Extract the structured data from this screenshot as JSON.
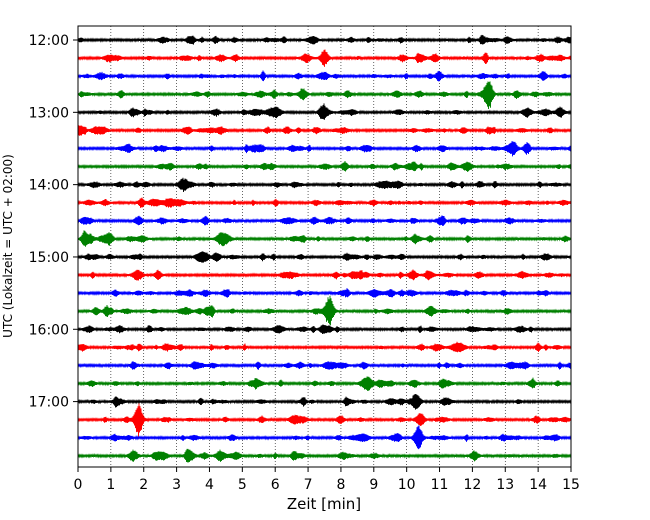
{
  "chart_data": {
    "type": "line",
    "title": "",
    "xlabel": "Zeit  [min]",
    "ylabel": "UTC (Lokalzeit = UTC + 02:00)",
    "xlim": [
      0,
      15
    ],
    "x_ticks": [
      "0",
      "1",
      "2",
      "3",
      "4",
      "5",
      "6",
      "7",
      "8",
      "9",
      "10",
      "11",
      "12",
      "13",
      "14",
      "15"
    ],
    "y_ticks": [
      "12:00",
      "13:00",
      "14:00",
      "15:00",
      "16:00",
      "17:00"
    ],
    "rows_per_hour": 4,
    "row_start_times": [
      "12:00",
      "12:15",
      "12:30",
      "12:45",
      "13:00",
      "13:15",
      "13:30",
      "13:45",
      "14:00",
      "14:15",
      "14:30",
      "14:45",
      "15:00",
      "15:15",
      "15:30",
      "15:45",
      "16:00",
      "16:15",
      "16:30",
      "16:45",
      "17:00",
      "17:15",
      "17:30",
      "17:45"
    ],
    "trace_colors": [
      "#000000",
      "#ff0000",
      "#0000ff",
      "#008000"
    ],
    "grid": {
      "x": true,
      "style": "dotted"
    },
    "notable_events": [
      {
        "row_start": "12:45",
        "minute": 12.5,
        "relative_amplitude": 1.0
      },
      {
        "row_start": "15:45",
        "minute": 7.65,
        "relative_amplitude": 0.85
      },
      {
        "row_start": "17:15",
        "minute": 1.85,
        "relative_amplitude": 0.85
      },
      {
        "row_start": "12:15",
        "minute": 7.5,
        "relative_amplitude": 0.55
      },
      {
        "row_start": "13:00",
        "minute": 7.45,
        "relative_amplitude": 0.55
      },
      {
        "row_start": "13:30",
        "minute": 13.25,
        "relative_amplitude": 0.5
      },
      {
        "row_start": "17:30",
        "minute": 10.35,
        "relative_amplitude": 0.45
      },
      {
        "row_start": "14:45",
        "minute": 0.95,
        "relative_amplitude": 0.4
      }
    ]
  }
}
